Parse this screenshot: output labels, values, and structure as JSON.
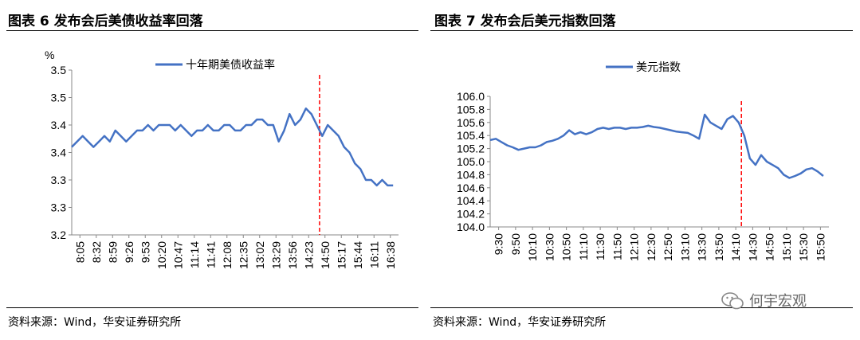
{
  "left": {
    "title": "图表 6 发布会后美债收益率回落",
    "source": "资料来源：Wind，华安证券研究所"
  },
  "right": {
    "title": "图表  7 发布会后美元指数回落",
    "source": "资料来源：Wind，华安证券研究所"
  },
  "watermark": "何宇宏观",
  "colors": {
    "line": "#4472C4",
    "marker": "#FF0000"
  },
  "chart_data": [
    {
      "type": "line",
      "title": "",
      "ylabel": "%",
      "ylim": [
        3.2,
        3.5
      ],
      "yticks": [
        "3.2",
        "3.3",
        "3.3",
        "3.4",
        "3.4",
        "3.5",
        "3.5"
      ],
      "x_tick_labels": [
        "8:05",
        "8:32",
        "8:59",
        "9:26",
        "9:53",
        "10:20",
        "10:47",
        "11:14",
        "11:41",
        "12:08",
        "12:35",
        "13:02",
        "13:29",
        "13:56",
        "14:23",
        "14:50",
        "15:17",
        "15:44",
        "16:11",
        "16:38"
      ],
      "xlim": [
        0,
        60
      ],
      "event_line_x": 45.5,
      "legend": "top-center",
      "series": [
        {
          "name": "十年期美债收益率",
          "x": [
            0,
            1,
            2,
            3,
            4,
            5,
            6,
            7,
            8,
            9,
            10,
            11,
            12,
            13,
            14,
            15,
            16,
            17,
            18,
            19,
            20,
            21,
            22,
            23,
            24,
            25,
            26,
            27,
            28,
            29,
            30,
            31,
            32,
            33,
            34,
            35,
            36,
            37,
            38,
            39,
            40,
            41,
            42,
            43,
            44,
            45,
            46,
            47,
            48,
            49,
            50,
            51,
            52,
            53,
            54,
            55,
            56,
            57,
            58,
            59
          ],
          "values": [
            3.36,
            3.37,
            3.38,
            3.37,
            3.36,
            3.37,
            3.38,
            3.37,
            3.39,
            3.38,
            3.37,
            3.38,
            3.39,
            3.39,
            3.4,
            3.39,
            3.4,
            3.4,
            3.4,
            3.39,
            3.4,
            3.39,
            3.38,
            3.39,
            3.39,
            3.4,
            3.39,
            3.39,
            3.4,
            3.4,
            3.39,
            3.39,
            3.4,
            3.4,
            3.41,
            3.41,
            3.4,
            3.4,
            3.37,
            3.39,
            3.42,
            3.4,
            3.41,
            3.43,
            3.42,
            3.4,
            3.38,
            3.4,
            3.39,
            3.38,
            3.36,
            3.35,
            3.33,
            3.32,
            3.3,
            3.3,
            3.29,
            3.3,
            3.29,
            3.29
          ]
        }
      ]
    },
    {
      "type": "line",
      "title": "",
      "ylabel": "",
      "ylim": [
        104.0,
        106.0
      ],
      "yticks": [
        "104.0",
        "104.2",
        "104.4",
        "104.6",
        "104.8",
        "105.0",
        "105.2",
        "105.4",
        "105.6",
        "105.8",
        "106.0"
      ],
      "x_tick_labels": [
        "9:30",
        "9:50",
        "10:10",
        "10:30",
        "10:50",
        "11:10",
        "11:30",
        "11:50",
        "12:10",
        "12:30",
        "12:50",
        "13:10",
        "13:30",
        "13:50",
        "14:10",
        "14:30",
        "14:50",
        "15:10",
        "15:30",
        "15:50"
      ],
      "xlim": [
        0,
        60
      ],
      "event_line_x": 44.5,
      "legend": "top-center",
      "series": [
        {
          "name": "美元指数",
          "x": [
            0,
            1,
            2,
            3,
            4,
            5,
            6,
            7,
            8,
            9,
            10,
            11,
            12,
            13,
            14,
            15,
            16,
            17,
            18,
            19,
            20,
            21,
            22,
            23,
            24,
            25,
            26,
            27,
            28,
            29,
            30,
            31,
            32,
            33,
            34,
            35,
            36,
            37,
            38,
            39,
            40,
            41,
            42,
            43,
            44,
            45,
            46,
            47,
            48,
            49,
            50,
            51,
            52,
            53,
            54,
            55,
            56,
            57,
            58,
            59
          ],
          "values": [
            105.33,
            105.35,
            105.3,
            105.25,
            105.22,
            105.18,
            105.2,
            105.22,
            105.22,
            105.25,
            105.3,
            105.32,
            105.35,
            105.4,
            105.48,
            105.42,
            105.45,
            105.42,
            105.45,
            105.5,
            105.52,
            105.5,
            105.52,
            105.52,
            105.5,
            105.52,
            105.52,
            105.53,
            105.55,
            105.53,
            105.52,
            105.5,
            105.48,
            105.46,
            105.45,
            105.44,
            105.4,
            105.35,
            105.72,
            105.6,
            105.55,
            105.5,
            105.65,
            105.7,
            105.6,
            105.4,
            105.05,
            104.95,
            105.1,
            105.0,
            104.95,
            104.9,
            104.8,
            104.75,
            104.78,
            104.82,
            104.88,
            104.9,
            104.85,
            104.78
          ]
        }
      ]
    }
  ]
}
